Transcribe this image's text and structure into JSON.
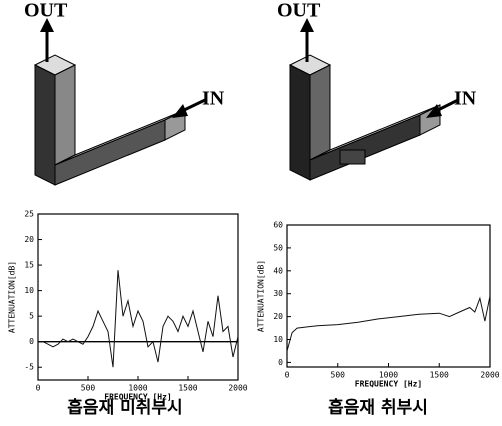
{
  "figure": {
    "panels": [
      {
        "out_label": "OUT",
        "in_label": "IN"
      },
      {
        "out_label": "OUT",
        "in_label": "IN"
      }
    ]
  },
  "chart_data": [
    {
      "type": "line",
      "caption": "흡음재 미취부시",
      "xlabel": "FREQUENCY [Hz]",
      "ylabel": "ATTENUATION[dB]",
      "x": [
        0,
        50,
        100,
        150,
        200,
        250,
        300,
        350,
        400,
        450,
        500,
        550,
        600,
        650,
        700,
        750,
        800,
        850,
        900,
        950,
        1000,
        1050,
        1100,
        1150,
        1200,
        1250,
        1300,
        1350,
        1400,
        1450,
        1500,
        1550,
        1600,
        1650,
        1700,
        1750,
        1800,
        1850,
        1900,
        1950,
        2000
      ],
      "values": [
        0,
        0,
        -0.5,
        -1,
        -0.5,
        0.5,
        0,
        0.5,
        0,
        -0.5,
        1,
        3,
        6,
        4,
        2,
        -5,
        14,
        5,
        8,
        3,
        6,
        4,
        -1,
        0,
        -4,
        3,
        5,
        4,
        2,
        5,
        3,
        6,
        2,
        -2,
        4,
        1,
        9,
        2,
        3,
        -3,
        1
      ],
      "color": "#111111",
      "xlim": [
        0,
        2000
      ],
      "xticks": [
        0,
        500,
        1000,
        1500,
        2000
      ],
      "ylim": [
        -7.5,
        25
      ],
      "yticks": [
        -5,
        0,
        5,
        10,
        15,
        20,
        25
      ],
      "zero_line": true
    },
    {
      "type": "line",
      "caption": "흡음재 취부시",
      "xlabel": "FREQUENCY [Hz]",
      "ylabel": "ATTENUATION[dB]",
      "x": [
        0,
        50,
        100,
        200,
        300,
        500,
        700,
        900,
        1100,
        1300,
        1500,
        1600,
        1700,
        1800,
        1850,
        1900,
        1950,
        2000
      ],
      "values": [
        5,
        13,
        15,
        15.5,
        16,
        16.5,
        17.5,
        19,
        20,
        21,
        21.5,
        20,
        22,
        24,
        22,
        28,
        18,
        29
      ],
      "color": "#111111",
      "xlim": [
        0,
        2000
      ],
      "xticks": [
        0,
        500,
        1000,
        1500,
        2000
      ],
      "ylim": [
        -2,
        60
      ],
      "yticks": [
        0,
        10,
        20,
        30,
        40,
        50,
        60
      ],
      "zero_line": false
    }
  ]
}
